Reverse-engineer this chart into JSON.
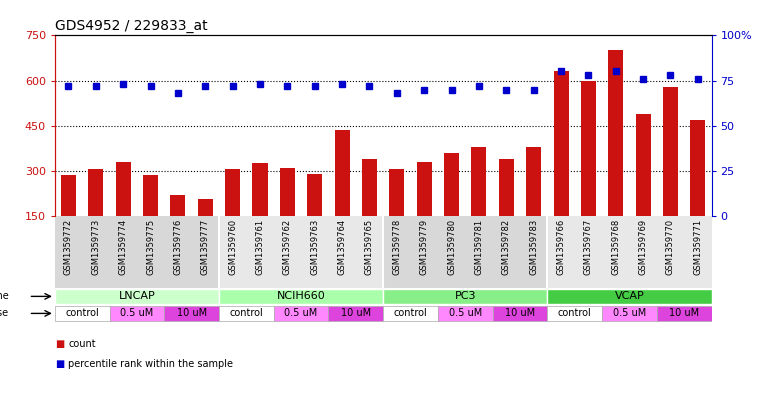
{
  "title": "GDS4952 / 229833_at",
  "samples": [
    "GSM1359772",
    "GSM1359773",
    "GSM1359774",
    "GSM1359775",
    "GSM1359776",
    "GSM1359777",
    "GSM1359760",
    "GSM1359761",
    "GSM1359762",
    "GSM1359763",
    "GSM1359764",
    "GSM1359765",
    "GSM1359778",
    "GSM1359779",
    "GSM1359780",
    "GSM1359781",
    "GSM1359782",
    "GSM1359783",
    "GSM1359766",
    "GSM1359767",
    "GSM1359768",
    "GSM1359769",
    "GSM1359770",
    "GSM1359771"
  ],
  "counts": [
    285,
    305,
    330,
    285,
    220,
    205,
    305,
    325,
    310,
    290,
    435,
    340,
    305,
    330,
    360,
    380,
    340,
    380,
    630,
    600,
    700,
    490,
    580,
    470
  ],
  "percentile_ranks": [
    72,
    72,
    73,
    72,
    68,
    72,
    72,
    73,
    72,
    72,
    73,
    72,
    68,
    70,
    70,
    72,
    70,
    70,
    80,
    78,
    80,
    76,
    78,
    76
  ],
  "cell_line_data": [
    {
      "name": "LNCAP",
      "start": 0,
      "end": 5,
      "color": "#ccffcc"
    },
    {
      "name": "NCIH660",
      "start": 6,
      "end": 11,
      "color": "#aaffaa"
    },
    {
      "name": "PC3",
      "start": 12,
      "end": 17,
      "color": "#88ee88"
    },
    {
      "name": "VCAP",
      "start": 18,
      "end": 23,
      "color": "#44cc44"
    }
  ],
  "dose_segments": [
    {
      "label": "control",
      "start": 0,
      "end": 1,
      "color": "#ffffff"
    },
    {
      "label": "0.5 uM",
      "start": 2,
      "end": 3,
      "color": "#ff88ff"
    },
    {
      "label": "10 uM",
      "start": 4,
      "end": 5,
      "color": "#dd44dd"
    },
    {
      "label": "control",
      "start": 6,
      "end": 7,
      "color": "#ffffff"
    },
    {
      "label": "0.5 uM",
      "start": 8,
      "end": 9,
      "color": "#ff88ff"
    },
    {
      "label": "10 uM",
      "start": 10,
      "end": 11,
      "color": "#dd44dd"
    },
    {
      "label": "control",
      "start": 12,
      "end": 13,
      "color": "#ffffff"
    },
    {
      "label": "0.5 uM",
      "start": 14,
      "end": 15,
      "color": "#ff88ff"
    },
    {
      "label": "10 uM",
      "start": 16,
      "end": 17,
      "color": "#dd44dd"
    },
    {
      "label": "control",
      "start": 18,
      "end": 19,
      "color": "#ffffff"
    },
    {
      "label": "0.5 uM",
      "start": 20,
      "end": 21,
      "color": "#ff88ff"
    },
    {
      "label": "10 uM",
      "start": 22,
      "end": 23,
      "color": "#dd44dd"
    }
  ],
  "ylim_left": [
    150,
    750
  ],
  "ylim_right": [
    0,
    100
  ],
  "yticks_left": [
    150,
    300,
    450,
    600,
    750
  ],
  "yticks_right": [
    0,
    25,
    50,
    75,
    100
  ],
  "hgrid_values": [
    300,
    450,
    600
  ],
  "bar_color": "#cc1111",
  "dot_color": "#0000cc",
  "background_color": "#ffffff",
  "title_fontsize": 10,
  "tick_fontsize": 8,
  "sample_fontsize": 6,
  "cell_fontsize": 8,
  "dose_fontsize": 7,
  "legend_fontsize": 7
}
